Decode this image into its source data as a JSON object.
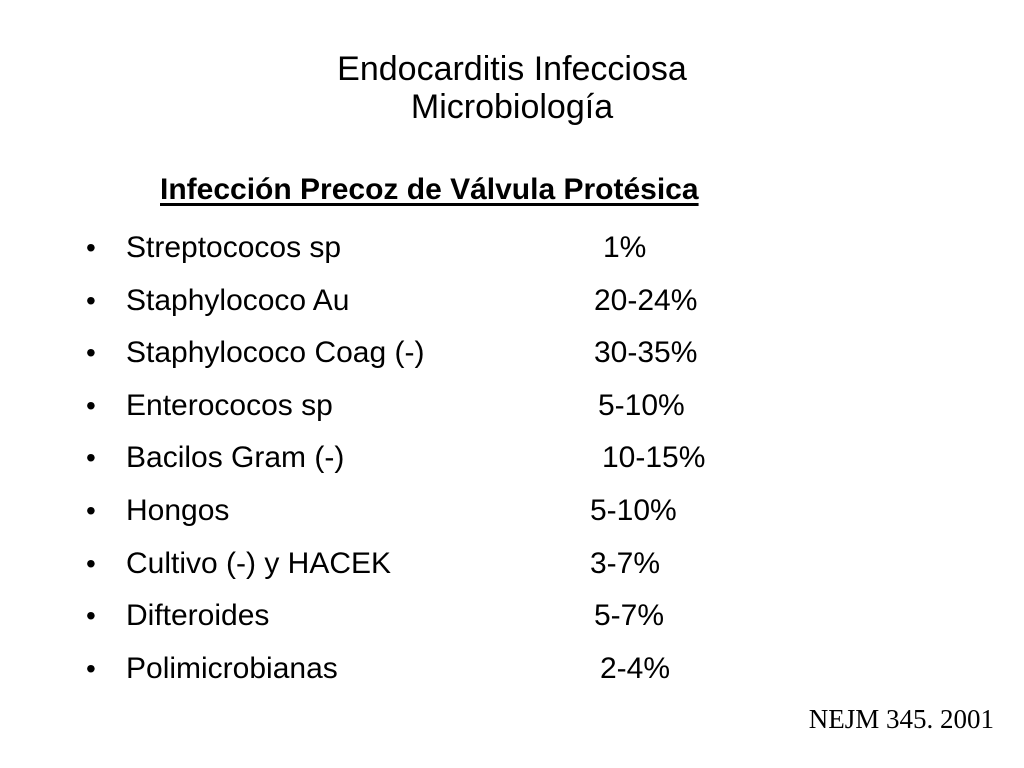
{
  "title": {
    "line1": "Endocarditis Infecciosa",
    "line2": "Microbiología"
  },
  "subtitle": "Infección Precoz de Válvula Protésica",
  "bullet_glyph": "•",
  "items": [
    {
      "name": "Streptococos sp",
      "percent": "1%"
    },
    {
      "name": "Staphylococo Au",
      "percent": "20-24%"
    },
    {
      "name": "Staphylococo Coag (-)",
      "percent": "30-35%"
    },
    {
      "name": "Enterococos sp",
      "percent": "5-10%"
    },
    {
      "name": "Bacilos Gram (-)",
      "percent": "10-15%"
    },
    {
      "name": "Hongos",
      "percent": "5-10%"
    },
    {
      "name": "Cultivo (-) y HACEK",
      "percent": "3-7%"
    },
    {
      "name": "Difteroides",
      "percent": "5-7%"
    },
    {
      "name": "Polimicrobianas",
      "percent": "2-4%"
    }
  ],
  "source": "NEJM 345. 2001"
}
